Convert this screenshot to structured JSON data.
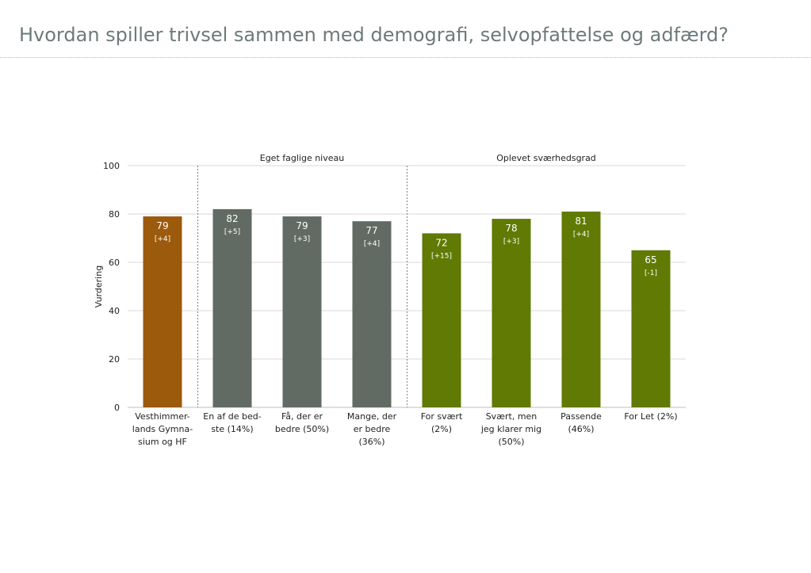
{
  "page": {
    "title": "Hvordan spiller trivsel sammen med demografi, selvopfattelse og adfærd?"
  },
  "chart_data": {
    "type": "bar",
    "ylabel": "Vurdering",
    "ylim": [
      0,
      100
    ],
    "yticks": [
      0,
      20,
      40,
      60,
      80,
      100
    ],
    "grid": true,
    "groups": [
      {
        "label": "",
        "start": 0,
        "end": 0
      },
      {
        "label": "Eget faglige niveau",
        "start": 1,
        "end": 3
      },
      {
        "label": "Oplevet sværhedsgrad",
        "start": 4,
        "end": 7
      }
    ],
    "categories": [
      [
        "Vesthimmer-",
        "lands Gymna-",
        "sium og HF"
      ],
      [
        "En af de bed-",
        "ste (14%)"
      ],
      [
        "Få, der er",
        "bedre (50%)"
      ],
      [
        "Mange, der",
        "er bedre",
        "(36%)"
      ],
      [
        "For svært",
        "(2%)"
      ],
      [
        "Svært, men",
        "jeg klarer mig",
        "(50%)"
      ],
      [
        "Passende",
        "(46%)"
      ],
      [
        "For Let (2%)"
      ]
    ],
    "values": [
      79,
      82,
      79,
      77,
      72,
      78,
      81,
      65
    ],
    "labels": [
      "79",
      "82",
      "79",
      "77",
      "72",
      "78",
      "81",
      "65"
    ],
    "sublabels": [
      "[+4]",
      "[+5]",
      "[+3]",
      "[+4]",
      "[+15]",
      "[+3]",
      "[+4]",
      "[-1]"
    ],
    "colors": [
      "#9c5a0c",
      "#616b63",
      "#616b63",
      "#616b63",
      "#607a03",
      "#607a03",
      "#607a03",
      "#607a03"
    ],
    "gridline_color": "#d9d9d9",
    "separator_color": "#7f7f7f"
  }
}
